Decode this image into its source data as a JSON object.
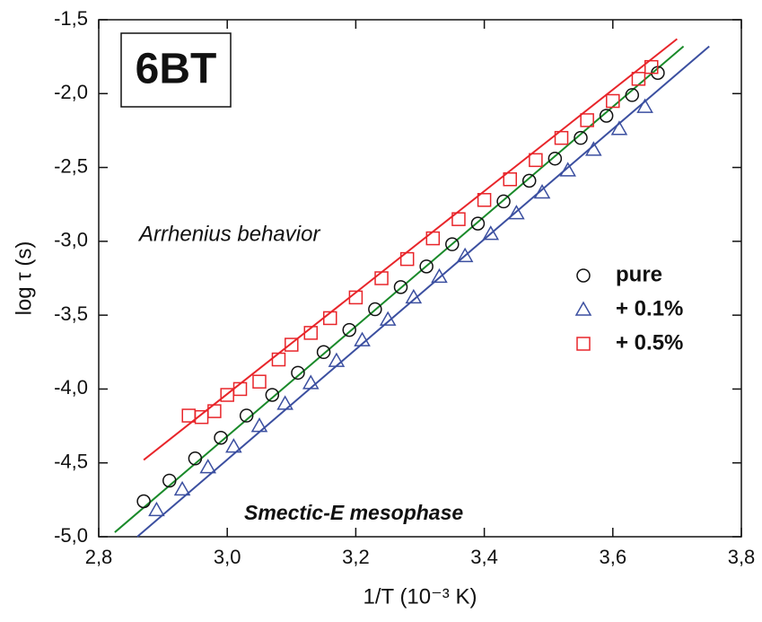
{
  "chart_data": {
    "type": "scatter",
    "label_box": "6BT",
    "x_label": "1/T (10⁻³ K)",
    "y_label": "log τ (s)",
    "annotations": [
      "Arrhenius behavior",
      "Smectic-E mesophase"
    ],
    "xlim": [
      2.8,
      3.8
    ],
    "ylim": [
      -5.0,
      -1.5
    ],
    "xticks": [
      {
        "value": 2.8,
        "label": "2,8"
      },
      {
        "value": 3.0,
        "label": "3,0"
      },
      {
        "value": 3.2,
        "label": "3,2"
      },
      {
        "value": 3.4,
        "label": "3,4"
      },
      {
        "value": 3.6,
        "label": "3,6"
      },
      {
        "value": 3.8,
        "label": "3,8"
      }
    ],
    "yticks": [
      {
        "value": -5.0,
        "label": "-5,0"
      },
      {
        "value": -4.5,
        "label": "-4,5"
      },
      {
        "value": -4.0,
        "label": "-4,0"
      },
      {
        "value": -3.5,
        "label": "-3,5"
      },
      {
        "value": -3.0,
        "label": "-3,0"
      },
      {
        "value": -2.5,
        "label": "-2,5"
      },
      {
        "value": -2.0,
        "label": "-2,0"
      },
      {
        "value": -1.5,
        "label": "-1,5"
      }
    ],
    "series": [
      {
        "name": "pure",
        "marker": "circle",
        "color": "#111111",
        "fit_color": "#1a8a2a",
        "x": [
          2.87,
          2.91,
          2.95,
          2.99,
          3.03,
          3.07,
          3.11,
          3.15,
          3.19,
          3.23,
          3.27,
          3.31,
          3.35,
          3.39,
          3.43,
          3.47,
          3.51,
          3.55,
          3.59,
          3.63,
          3.67
        ],
        "values": [
          -4.76,
          -4.62,
          -4.47,
          -4.33,
          -4.18,
          -4.04,
          -3.89,
          -3.75,
          -3.6,
          -3.46,
          -3.31,
          -3.17,
          -3.02,
          -2.88,
          -2.73,
          -2.59,
          -2.44,
          -2.3,
          -2.15,
          -2.01,
          -1.86
        ],
        "fit_x": [
          2.825,
          3.71
        ],
        "fit_y": [
          -4.97,
          -1.68
        ]
      },
      {
        "name": "+ 0.1%",
        "marker": "triangle",
        "color": "#3b4fa0",
        "fit_color": "#3b4fa0",
        "x": [
          2.89,
          2.93,
          2.97,
          3.01,
          3.05,
          3.09,
          3.13,
          3.17,
          3.21,
          3.25,
          3.29,
          3.33,
          3.37,
          3.41,
          3.45,
          3.49,
          3.53,
          3.57,
          3.61,
          3.65
        ],
        "values": [
          -4.82,
          -4.68,
          -4.53,
          -4.39,
          -4.25,
          -4.1,
          -3.96,
          -3.81,
          -3.67,
          -3.53,
          -3.38,
          -3.24,
          -3.1,
          -2.95,
          -2.81,
          -2.67,
          -2.52,
          -2.38,
          -2.24,
          -2.09
        ],
        "fit_x": [
          2.86,
          3.75
        ],
        "fit_y": [
          -5.0,
          -1.68
        ]
      },
      {
        "name": "+ 0.5%",
        "marker": "square",
        "color": "#e8252a",
        "fit_color": "#e8252a",
        "x": [
          2.94,
          2.96,
          2.98,
          3.0,
          3.02,
          3.05,
          3.08,
          3.1,
          3.13,
          3.16,
          3.2,
          3.24,
          3.28,
          3.32,
          3.36,
          3.4,
          3.44,
          3.48,
          3.52,
          3.56,
          3.6,
          3.64,
          3.66
        ],
        "values": [
          -4.18,
          -4.19,
          -4.15,
          -4.04,
          -4.0,
          -3.95,
          -3.8,
          -3.7,
          -3.62,
          -3.52,
          -3.38,
          -3.25,
          -3.12,
          -2.98,
          -2.85,
          -2.72,
          -2.58,
          -2.45,
          -2.3,
          -2.18,
          -2.05,
          -1.9,
          -1.82
        ],
        "fit_x": [
          2.87,
          3.7
        ],
        "fit_y": [
          -4.48,
          -1.63
        ]
      }
    ]
  }
}
